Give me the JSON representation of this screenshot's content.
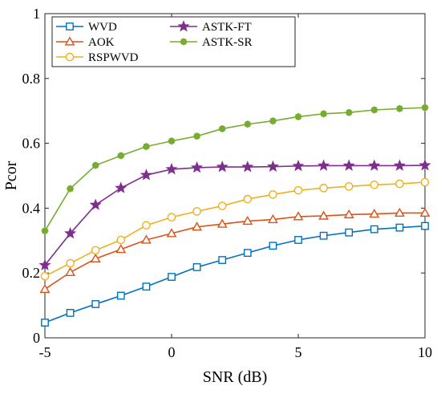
{
  "chart_data": {
    "type": "line",
    "title": "",
    "xlabel": "SNR (dB)",
    "ylabel": "Pcor",
    "xlim": [
      -5,
      10
    ],
    "ylim": [
      0,
      1
    ],
    "x_ticks": [
      "-5",
      "0",
      "5",
      "10"
    ],
    "y_ticks": [
      "0",
      "0.2",
      "0.4",
      "0.6",
      "0.8",
      "1"
    ],
    "grid": false,
    "legend_position": "top-left",
    "x": [
      -5,
      -4,
      -3,
      -2,
      -1,
      0,
      1,
      2,
      3,
      4,
      5,
      6,
      7,
      8,
      9,
      10
    ],
    "series": [
      {
        "name": "WVD",
        "color": "#0072BD",
        "marker": "square",
        "values": [
          0.047,
          0.077,
          0.104,
          0.13,
          0.158,
          0.188,
          0.218,
          0.24,
          0.262,
          0.284,
          0.302,
          0.315,
          0.325,
          0.335,
          0.34,
          0.345
        ]
      },
      {
        "name": "AOK",
        "color": "#D95319",
        "marker": "triangle",
        "values": [
          0.15,
          0.202,
          0.244,
          0.273,
          0.302,
          0.322,
          0.342,
          0.351,
          0.36,
          0.365,
          0.374,
          0.376,
          0.38,
          0.382,
          0.385,
          0.385
        ]
      },
      {
        "name": "RSPWVD",
        "color": "#EDB120",
        "marker": "circle",
        "values": [
          0.19,
          0.23,
          0.27,
          0.302,
          0.347,
          0.372,
          0.39,
          0.407,
          0.428,
          0.442,
          0.455,
          0.462,
          0.467,
          0.472,
          0.475,
          0.48
        ]
      },
      {
        "name": "ASTK-FT",
        "color": "#7E2F8E",
        "marker": "star",
        "values": [
          0.224,
          0.322,
          0.41,
          0.462,
          0.502,
          0.52,
          0.525,
          0.527,
          0.527,
          0.528,
          0.53,
          0.531,
          0.531,
          0.531,
          0.531,
          0.532
        ]
      },
      {
        "name": "ASTK-SR",
        "color": "#77AC30",
        "marker": "asterisk",
        "values": [
          0.33,
          0.46,
          0.532,
          0.562,
          0.59,
          0.607,
          0.622,
          0.645,
          0.659,
          0.669,
          0.682,
          0.691,
          0.695,
          0.703,
          0.707,
          0.71
        ]
      }
    ]
  }
}
